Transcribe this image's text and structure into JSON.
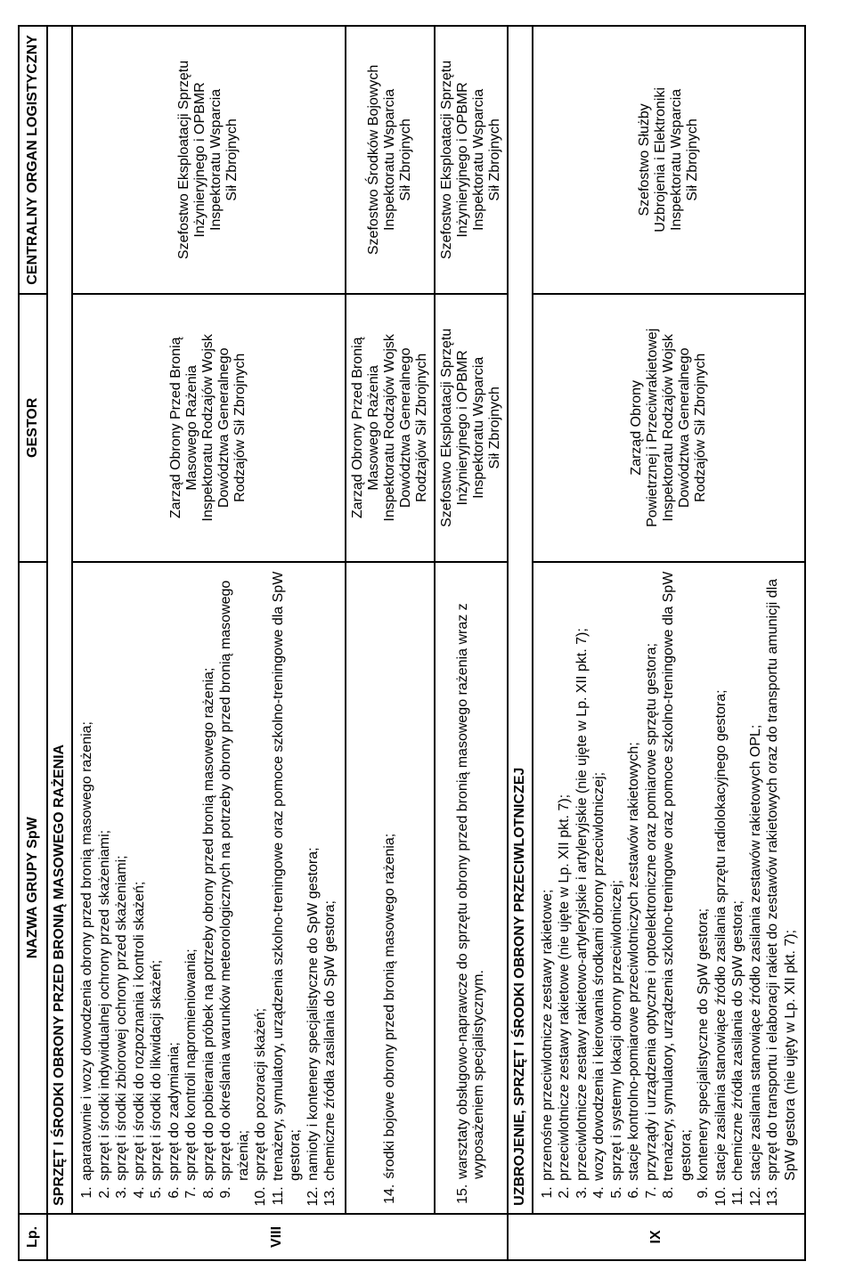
{
  "headers": {
    "lp": "Lp.",
    "name": "NAZWA GRUPY SpW",
    "gestor": "GESTOR",
    "col": "CENTRALNY ORGAN LOGISTYCZNY"
  },
  "sections": {
    "viii": {
      "lp": "VIII",
      "title": "SPRZĘT I ŚRODKI OBRONY PRZED BRONIĄ MASOWEGO RAŻENIA"
    },
    "ix": {
      "lp": "IX",
      "title": "UZBROJENIE, SPRZĘT I ŚRODKI OBRONY PRZECIWLOTNICZEJ"
    }
  },
  "viii_block1": {
    "items": [
      "aparatownie i wozy dowodzenia obrony przed bronią masowego rażenia;",
      "sprzęt i środki indywidualnej ochrony przed skażeniami;",
      "sprzęt i środki zbiorowej ochrony przed skażeniami;",
      "sprzęt i środki do rozpoznania i kontroli skażeń;",
      "sprzęt i środki do likwidacji skażeń;",
      "sprzęt do zadymiania;",
      "sprzęt do kontroli napromieniowania;",
      "sprzęt do pobierania próbek na potrzeby obrony przed bronią masowego rażenia;",
      "sprzęt do określania warunków meteorologicznych na potrzeby obrony przed bronią masowego rażenia;",
      "sprzęt do pozoracji skażeń;",
      "trenażery, symulatory, urządzenia szkolno-treningowe oraz pomoce szkolno-treningowe dla SpW gestora;",
      "namioty i kontenery specjalistyczne do SpW gestora;",
      "chemiczne źródła zasilania do SpW gestora;"
    ],
    "gestor_lines": [
      "Zarząd Obrony Przed Bronią",
      "Masowego Rażenia",
      "Inspektoratu Rodzajów Wojsk",
      "Dowództwa Generalnego",
      "Rodzajów Sił Zbrojnych"
    ],
    "col_lines": [
      "Szefostwo Eksploatacji Sprzętu",
      "Inżynieryjnego i OPBMR",
      "Inspektoratu Wsparcia",
      "Sił Zbrojnych"
    ]
  },
  "viii_block2": {
    "num": "14.",
    "text": "środki bojowe obrony przed bronią masowego rażenia;",
    "gestor_lines": [
      "Zarząd Obrony Przed Bronią",
      "Masowego Rażenia",
      "Inspektoratu Rodzajów Wojsk",
      "Dowództwa Generalnego",
      "Rodzajów Sił Zbrojnych"
    ],
    "col_lines": [
      "Szefostwo Środków Bojowych",
      "Inspektoratu Wsparcia",
      "Sił Zbrojnych"
    ]
  },
  "viii_block3": {
    "num": "15.",
    "text": "warsztaty obsługowo-naprawcze do sprzętu obrony przed bronią masowego rażenia wraz z wyposażeniem specjalistycznym.",
    "gestor_lines": [
      "Szefostwo Eksploatacji Sprzętu",
      "Inżynieryjnego i OPBMR",
      "Inspektoratu Wsparcia",
      "Sił Zbrojnych"
    ],
    "col_lines": [
      "Szefostwo Eksploatacji Sprzętu",
      "Inżynieryjnego i OPBMR",
      "Inspektoratu Wsparcia",
      "Sił Zbrojnych"
    ]
  },
  "ix_block1": {
    "items": [
      "przenośne przeciwlotnicze zestawy rakietowe;",
      "przeciwlotnicze zestawy rakietowe (nie ujęte w Lp. XII pkt. 7);",
      "przeciwlotnicze zestawy rakietowo-artyleryjskie i artyleryjskie (nie ujęte w Lp. XII pkt. 7);",
      "wozy dowodzenia i kierowania środkami obrony przeciwlotniczej;",
      "sprzęt i systemy lokacji obrony przeciwlotniczej;",
      "stacje kontrolno-pomiarowe przeciwlotniczych zestawów rakietowych;",
      "przyrządy i urządzenia optyczne i optoelektroniczne oraz pomiarowe sprzętu gestora;",
      "trenażery, symulatory, urządzenia szkolno-treningowe oraz pomoce szkolno-treningowe dla SpW gestora;",
      "kontenery specjalistyczne do SpW gestora;",
      "stacje zasilania stanowiące źródło zasilania sprzętu radiolokacyjnego gestora;",
      "chemiczne źródła zasilania do SpW gestora;",
      "stacje zasilania stanowiące źródło zasilania zestawów rakietowych OPL;",
      "sprzęt do transportu i elaboracji rakiet do zestawów rakietowych oraz do transportu amunicji dla SpW gestora (nie ujęty w Lp. XII pkt. 7);"
    ],
    "gestor_lines": [
      "Zarząd Obrony",
      "Powietrznej i Przeciwrakietowej",
      "Inspektoratu Rodzajów Wojsk",
      "Dowództwa Generalnego",
      "Rodzajów Sił Zbrojnych"
    ],
    "col_lines": [
      "Szefostwo Służby",
      "Uzbrojenia i Elektroniki",
      "Inspektoratu Wsparcia",
      "Sił Zbrojnych"
    ]
  }
}
